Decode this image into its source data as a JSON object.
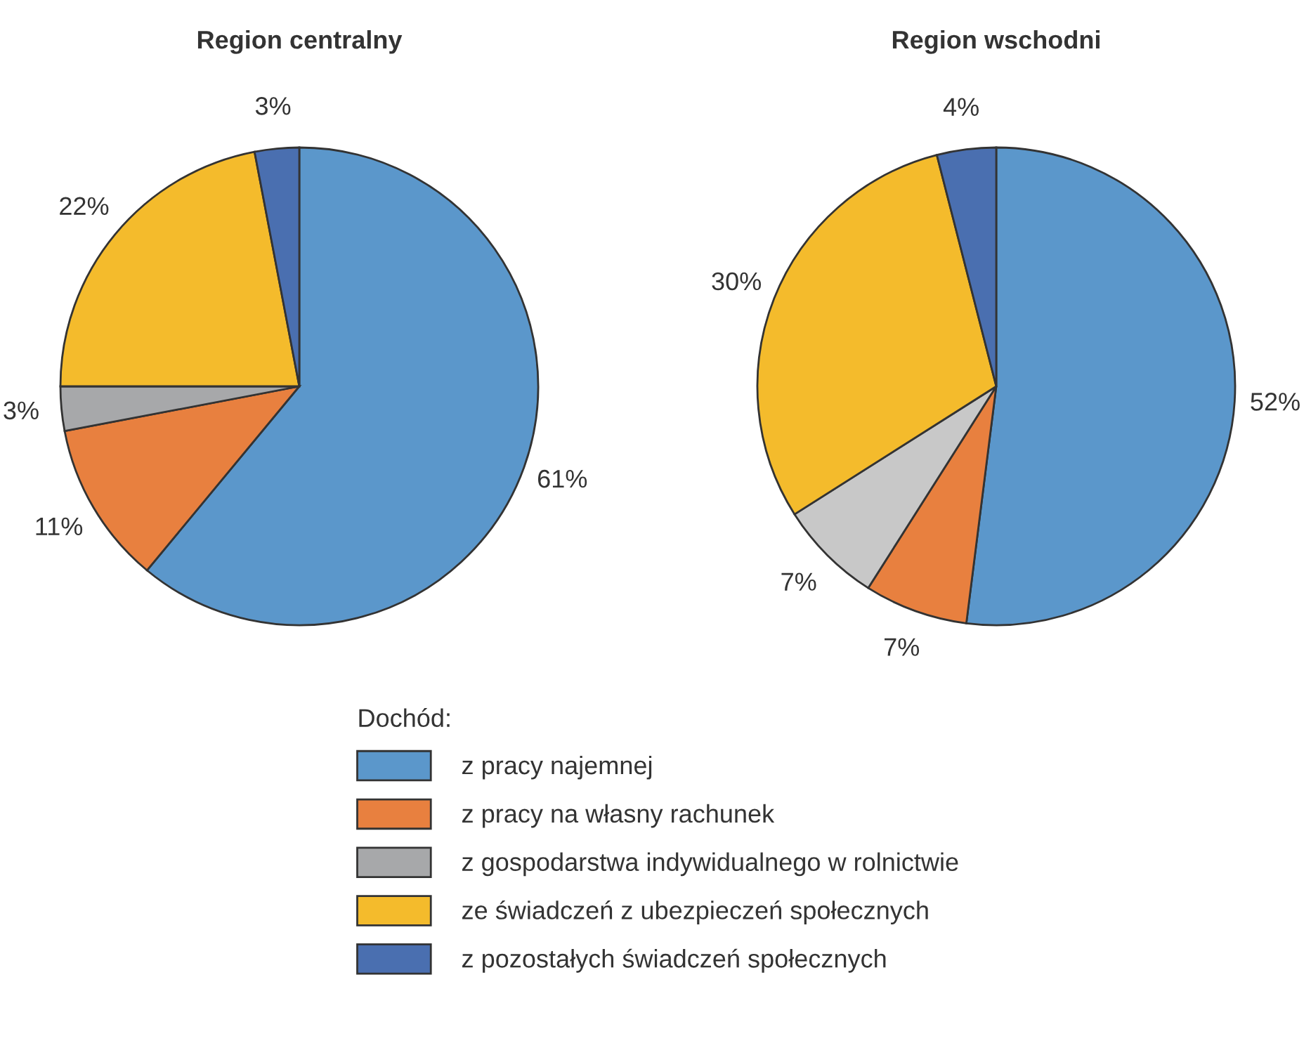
{
  "chart_data": [
    {
      "type": "pie",
      "title": "Region centralny",
      "categories": [
        "z pracy najemnej",
        "z pracy na własny rachunek",
        "z gospodarstwa indywidualnego w rolnictwie",
        "ze świadczeń z ubezpieczeń społecznych",
        "z pozostałych świadczeń społecznych"
      ],
      "values": [
        61,
        11,
        3,
        22,
        3
      ],
      "value_labels": [
        "61%",
        "11%",
        "3%",
        "22%",
        "3%"
      ],
      "colors": [
        "#5b97cb",
        "#e8803f",
        "#a7a8aa",
        "#f4bb2c",
        "#4a6fb0"
      ],
      "legend": "bottom",
      "legend_title": "Dochód:"
    },
    {
      "type": "pie",
      "title": "Region wschodni",
      "categories": [
        null,
        null,
        null,
        null,
        null
      ],
      "values": [
        52,
        7,
        7,
        30,
        4
      ],
      "value_labels": [
        "52%",
        "7%",
        "7%",
        "30%",
        "4%"
      ],
      "colors": [
        "#5b97cb",
        "#e8803f",
        "#c8c8c8",
        "#f4bb2c",
        "#4a6fb0"
      ]
    }
  ]
}
